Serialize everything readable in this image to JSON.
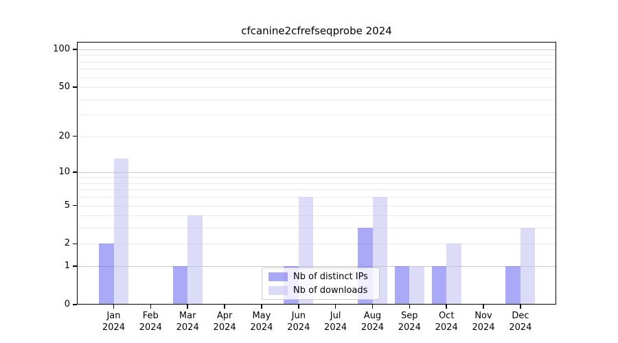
{
  "chart_data": {
    "type": "bar",
    "title": "cfcanine2cfrefseqprobe 2024",
    "months": [
      "Jan",
      "Feb",
      "Mar",
      "Apr",
      "May",
      "Jun",
      "Jul",
      "Aug",
      "Sep",
      "Oct",
      "Nov",
      "Dec"
    ],
    "year": "2024",
    "categories": [
      "Jan 2024",
      "Feb 2024",
      "Mar 2024",
      "Apr 2024",
      "May 2024",
      "Jun 2024",
      "Jul 2024",
      "Aug 2024",
      "Sep 2024",
      "Oct 2024",
      "Nov 2024",
      "Dec 2024"
    ],
    "series": [
      {
        "name": "Nb of distinct IPs",
        "color": "rgba(84,84,240,0.5)",
        "solid_color": "#aaaaf7",
        "values": [
          2,
          0,
          1,
          0,
          0,
          1,
          0,
          3,
          1,
          1,
          0,
          1
        ]
      },
      {
        "name": "Nb of downloads",
        "color": "rgba(186,186,243,0.5)",
        "solid_color": "#dcdcf9",
        "values": [
          13,
          0,
          4,
          0,
          0,
          6,
          0,
          6,
          1,
          2,
          0,
          3
        ]
      }
    ],
    "yscale": "log10(value+1)",
    "ylim": [
      0,
      113
    ],
    "yticks": [
      100,
      50,
      20,
      10,
      5,
      2,
      1,
      0
    ],
    "minor_gridline_values": [
      2,
      3,
      4,
      5,
      6,
      7,
      8,
      9,
      20,
      30,
      40,
      50,
      60,
      70,
      80,
      90
    ],
    "major_gridline_values": [
      1,
      10,
      100
    ],
    "grid": true,
    "legend_position": "lower center"
  },
  "colors": {
    "background": "#ffffff",
    "axis": "#000000",
    "minor_grid": "#ebebeb",
    "major_grid": "#c9c9c9",
    "text": "#000000",
    "legend_border": "#cccccc"
  }
}
